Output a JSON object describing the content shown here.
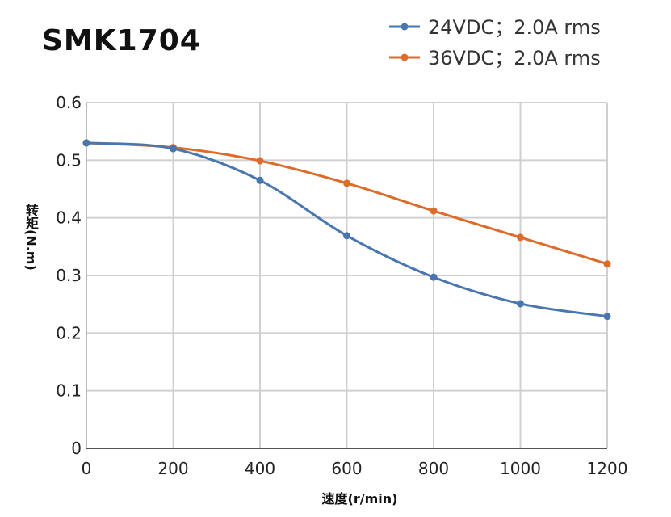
{
  "chart_data": {
    "type": "line",
    "title": "SMK1704",
    "xlabel": "速度(r/min)",
    "ylabel": "转矩(N.m)",
    "xlim": [
      0,
      1200
    ],
    "ylim": [
      0,
      0.6
    ],
    "x_ticks": [
      "0",
      "200",
      "400",
      "600",
      "800",
      "1000",
      "1200"
    ],
    "y_ticks": [
      "0",
      "0.1",
      "0.2",
      "0.3",
      "0.4",
      "0.5",
      "0.6"
    ],
    "grid": true,
    "legend": "top-right",
    "x": [
      0,
      200,
      400,
      600,
      800,
      1000,
      1200
    ],
    "series": [
      {
        "name": "24VDC；2.0A rms",
        "color": "#4a76b0",
        "values": [
          0.53,
          0.52,
          0.465,
          0.369,
          0.297,
          0.251,
          0.229
        ]
      },
      {
        "name": "36VDC；2.0A rms",
        "color": "#dd6b2a",
        "values": [
          0.53,
          0.522,
          0.499,
          0.46,
          0.412,
          0.366,
          0.32
        ]
      }
    ]
  }
}
